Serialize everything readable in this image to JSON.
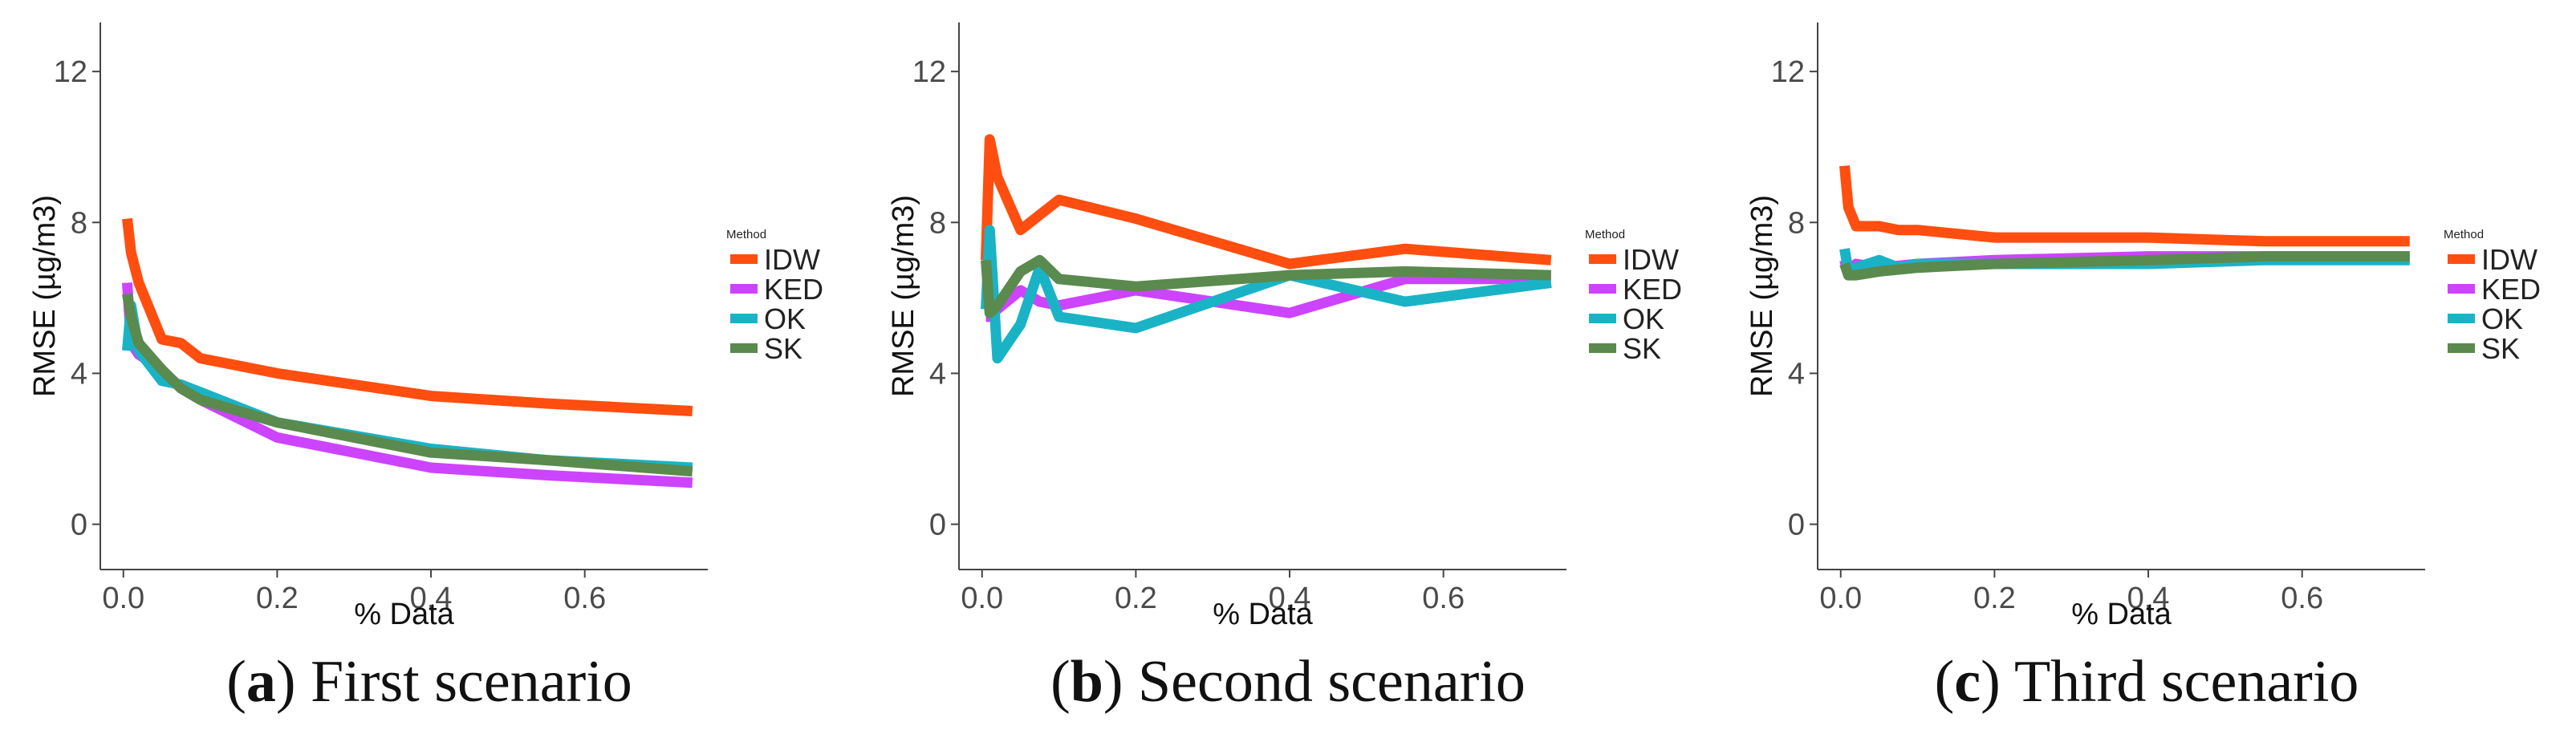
{
  "chart_data": [
    {
      "type": "line",
      "title": "",
      "caption_letter": "a",
      "caption_text": "First scenario",
      "xlabel": "% Data",
      "ylabel": "RMSE (µg/m3)",
      "xlim": [
        -0.03,
        0.76
      ],
      "ylim": [
        -1.2,
        13.3
      ],
      "xticks": [
        0.0,
        0.2,
        0.4,
        0.6
      ],
      "xtick_labels": [
        "0.0",
        "0.2",
        "0.4",
        "0.6"
      ],
      "yticks": [
        0,
        4,
        8,
        12
      ],
      "ytick_labels": [
        "0",
        "4",
        "8",
        "12"
      ],
      "grid": false,
      "legend_title": "Method",
      "legend_position": "right",
      "series": [
        {
          "name": "IDW",
          "color": "#ff4e0f",
          "x": [
            0.005,
            0.01,
            0.02,
            0.05,
            0.075,
            0.1,
            0.2,
            0.4,
            0.55,
            0.74
          ],
          "y": [
            8.1,
            7.2,
            6.4,
            4.9,
            4.8,
            4.4,
            4.0,
            3.4,
            3.2,
            3.0
          ]
        },
        {
          "name": "KED",
          "color": "#cc44ff",
          "x": [
            0.005,
            0.01,
            0.02,
            0.05,
            0.075,
            0.1,
            0.2,
            0.4,
            0.55,
            0.74
          ],
          "y": [
            6.4,
            4.8,
            4.5,
            4.1,
            3.6,
            3.3,
            2.3,
            1.5,
            1.3,
            1.1
          ]
        },
        {
          "name": "OK",
          "color": "#1ab3c6",
          "x": [
            0.005,
            0.01,
            0.02,
            0.05,
            0.075,
            0.1,
            0.2,
            0.4,
            0.55,
            0.74
          ],
          "y": [
            4.6,
            5.8,
            4.6,
            3.8,
            3.7,
            3.5,
            2.7,
            2.0,
            1.7,
            1.5
          ]
        },
        {
          "name": "SK",
          "color": "#5a8a4e",
          "x": [
            0.005,
            0.01,
            0.02,
            0.05,
            0.075,
            0.1,
            0.2,
            0.4,
            0.55,
            0.74
          ],
          "y": [
            6.1,
            5.5,
            4.8,
            4.1,
            3.6,
            3.3,
            2.7,
            1.9,
            1.7,
            1.4
          ]
        }
      ]
    },
    {
      "type": "line",
      "title": "",
      "caption_letter": "b",
      "caption_text": "Second scenario",
      "xlabel": "% Data",
      "ylabel": "RMSE (µg/m3)",
      "xlim": [
        -0.03,
        0.76
      ],
      "ylim": [
        -1.2,
        13.3
      ],
      "xticks": [
        0.0,
        0.2,
        0.4,
        0.6
      ],
      "xtick_labels": [
        "0.0",
        "0.2",
        "0.4",
        "0.6"
      ],
      "yticks": [
        0,
        4,
        8,
        12
      ],
      "ytick_labels": [
        "0",
        "4",
        "8",
        "12"
      ],
      "grid": false,
      "legend_title": "Method",
      "legend_position": "right",
      "series": [
        {
          "name": "IDW",
          "color": "#ff4e0f",
          "x": [
            0.005,
            0.01,
            0.02,
            0.05,
            0.075,
            0.1,
            0.2,
            0.4,
            0.55,
            0.74
          ],
          "y": [
            7.0,
            10.2,
            9.2,
            7.8,
            8.2,
            8.6,
            8.1,
            6.9,
            7.3,
            7.0
          ]
        },
        {
          "name": "KED",
          "color": "#cc44ff",
          "x": [
            0.005,
            0.01,
            0.02,
            0.05,
            0.075,
            0.1,
            0.2,
            0.4,
            0.55,
            0.74
          ],
          "y": [
            5.5,
            5.5,
            5.7,
            6.2,
            5.9,
            5.8,
            6.2,
            5.6,
            6.5,
            6.5
          ]
        },
        {
          "name": "OK",
          "color": "#1ab3c6",
          "x": [
            0.005,
            0.01,
            0.02,
            0.05,
            0.075,
            0.1,
            0.2,
            0.4,
            0.55,
            0.74
          ],
          "y": [
            5.7,
            7.8,
            4.4,
            5.3,
            6.8,
            5.5,
            5.2,
            6.6,
            5.9,
            6.4
          ]
        },
        {
          "name": "SK",
          "color": "#5a8a4e",
          "x": [
            0.005,
            0.01,
            0.02,
            0.05,
            0.075,
            0.1,
            0.2,
            0.4,
            0.55,
            0.74
          ],
          "y": [
            7.0,
            5.6,
            5.8,
            6.7,
            7.0,
            6.5,
            6.3,
            6.6,
            6.7,
            6.6
          ]
        }
      ]
    },
    {
      "type": "line",
      "title": "",
      "caption_letter": "c",
      "caption_text": "Third scenario",
      "xlabel": "% Data",
      "ylabel": "RMSE (µg/m3)",
      "xlim": [
        -0.03,
        0.76
      ],
      "ylim": [
        -1.2,
        13.3
      ],
      "xticks": [
        0.0,
        0.2,
        0.4,
        0.6
      ],
      "xtick_labels": [
        "0.0",
        "0.2",
        "0.4",
        "0.6"
      ],
      "yticks": [
        0,
        4,
        8,
        12
      ],
      "ytick_labels": [
        "0",
        "4",
        "8",
        "12"
      ],
      "grid": false,
      "legend_title": "Method",
      "legend_position": "right",
      "series": [
        {
          "name": "IDW",
          "color": "#ff4e0f",
          "x": [
            0.005,
            0.01,
            0.02,
            0.05,
            0.075,
            0.1,
            0.2,
            0.3,
            0.4,
            0.55,
            0.74
          ],
          "y": [
            9.5,
            8.4,
            7.9,
            7.9,
            7.8,
            7.8,
            7.6,
            7.6,
            7.6,
            7.5,
            7.5
          ]
        },
        {
          "name": "KED",
          "color": "#cc44ff",
          "x": [
            0.005,
            0.01,
            0.02,
            0.05,
            0.1,
            0.2,
            0.4,
            0.55,
            0.74
          ],
          "y": [
            7.0,
            6.6,
            6.9,
            6.8,
            6.9,
            7.0,
            7.1,
            7.1,
            7.1
          ]
        },
        {
          "name": "OK",
          "color": "#1ab3c6",
          "x": [
            0.005,
            0.01,
            0.02,
            0.05,
            0.075,
            0.1,
            0.2,
            0.4,
            0.55,
            0.74
          ],
          "y": [
            7.3,
            6.7,
            6.8,
            7.0,
            6.8,
            6.9,
            6.9,
            6.9,
            7.0,
            7.0
          ]
        },
        {
          "name": "SK",
          "color": "#5a8a4e",
          "x": [
            0.005,
            0.01,
            0.02,
            0.05,
            0.1,
            0.2,
            0.4,
            0.55,
            0.74
          ],
          "y": [
            6.9,
            6.6,
            6.6,
            6.7,
            6.8,
            6.9,
            7.0,
            7.1,
            7.1
          ]
        }
      ]
    }
  ]
}
